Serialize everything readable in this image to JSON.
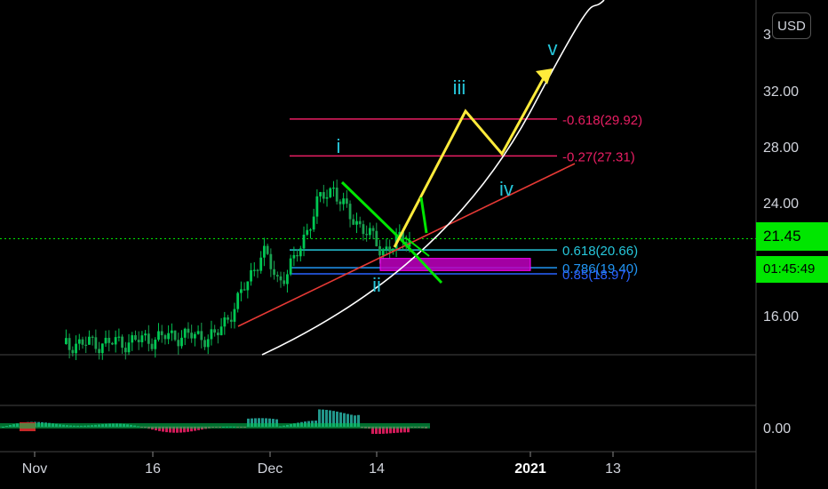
{
  "chart_data": [
    {
      "type": "line",
      "title": "",
      "price_axis": {
        "ticks": [
          "3",
          "32.00",
          "28.00",
          "24.00",
          "16.00"
        ],
        "currency_button": "USD",
        "current_price": "21.45",
        "countdown": "01:45:49"
      },
      "time_axis": {
        "ticks": [
          "Nov",
          "16",
          "Dec",
          "14",
          "2021",
          "13"
        ]
      },
      "series": [
        {
          "name": "",
          "description_values": "close price path",
          "x": [
            "Nov 5",
            "Nov 12",
            "Nov 19",
            "Nov 24",
            "Nov 27",
            "Nov 30",
            "Dec 2",
            "Dec 4",
            "Dec 7",
            "Dec 9",
            "Dec 11",
            "Dec 13",
            "Dec 15",
            "Dec 17",
            "Dec 19"
          ],
          "values": [
            14.0,
            14.1,
            14.6,
            14.5,
            17.2,
            20.6,
            18.4,
            19.8,
            24.0,
            25.1,
            23.0,
            22.2,
            20.6,
            21.2,
            21.45
          ]
        }
      ],
      "fib_levels": [
        {
          "label": "-0.618(29.92)",
          "value": 29.92,
          "color": "#e91e63"
        },
        {
          "label": "-0.27(27.31)",
          "value": 27.31,
          "color": "#e91e63"
        },
        {
          "label": "0.618(20.66)",
          "value": 20.66,
          "color": "#26c6da"
        },
        {
          "label": "0.786(19.40)",
          "value": 19.4,
          "color": "#2196f3"
        },
        {
          "label": "0.85(18.97)",
          "value": 18.97,
          "color": "#2962ff"
        }
      ],
      "wave_labels": [
        "i",
        "ii",
        "iii",
        "iv",
        "v"
      ],
      "colors": {
        "candles": "#00c853",
        "last_price_line": "#00e600",
        "trendline": "#e53935",
        "curve": "#ffffff",
        "projection": "#ffeb3b",
        "correction": "#00e600",
        "zone": "#c000c0",
        "wave_labels": "#26c6da"
      }
    },
    {
      "type": "bar",
      "name": "oscillator",
      "ticks": [
        "0.00"
      ],
      "colors": {
        "positive": "#26a69a",
        "negative": "#e91e63",
        "signal": "#00c853"
      }
    }
  ]
}
